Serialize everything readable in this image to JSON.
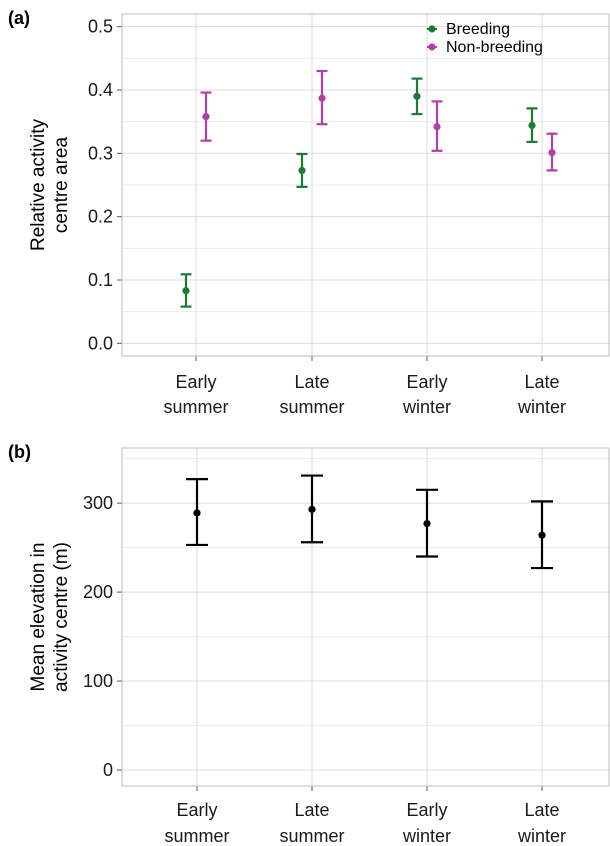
{
  "chart_data": [
    {
      "panel": "(a)",
      "type": "scatter",
      "subtype": "point-with-error-bars",
      "categories": [
        "Early\nsummer",
        "Late\nsummer",
        "Early\nwinter",
        "Late\nwinter"
      ],
      "ylabel": "Relative activity\ncentre area",
      "xlabel": "",
      "ylim": [
        -0.02,
        0.52
      ],
      "yticks": [
        0.0,
        0.1,
        0.2,
        0.3,
        0.4,
        0.5
      ],
      "ytick_labels": [
        "0.0",
        "0.1",
        "0.2",
        "0.3",
        "0.4",
        "0.5"
      ],
      "grid": true,
      "legend": "top-right",
      "series": [
        {
          "name": "Breeding",
          "color": "#1b7a35",
          "values": [
            0.083,
            0.273,
            0.39,
            0.344
          ],
          "lower": [
            0.058,
            0.247,
            0.362,
            0.318
          ],
          "upper": [
            0.109,
            0.299,
            0.418,
            0.371
          ]
        },
        {
          "name": "Non-breeding",
          "color": "#b040a8",
          "values": [
            0.358,
            0.387,
            0.342,
            0.301
          ],
          "lower": [
            0.32,
            0.346,
            0.304,
            0.273
          ],
          "upper": [
            0.396,
            0.43,
            0.382,
            0.331
          ]
        }
      ]
    },
    {
      "panel": "(b)",
      "type": "scatter",
      "subtype": "point-with-error-bars",
      "categories": [
        "Early\nsummer",
        "Late\nsummer",
        "Early\nwinter",
        "Late\nwinter"
      ],
      "ylabel": "Mean elevation in\nactivity centre (m)",
      "xlabel": "",
      "ylim": [
        -18,
        362
      ],
      "yticks": [
        0,
        100,
        200,
        300
      ],
      "ytick_labels": [
        "0",
        "100",
        "200",
        "300"
      ],
      "grid": true,
      "series": [
        {
          "color": "#000000",
          "values": [
            289,
            293,
            277,
            264
          ],
          "lower": [
            253,
            256,
            240,
            227
          ],
          "upper": [
            327,
            331,
            315,
            302
          ]
        }
      ]
    }
  ]
}
